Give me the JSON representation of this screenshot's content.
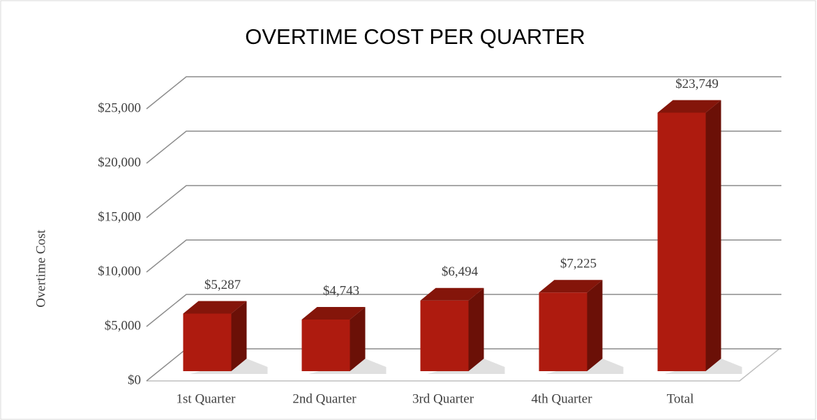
{
  "chart_data": {
    "type": "bar3d",
    "title": "OVERTIME COST PER QUARTER",
    "y_label": "Overtime Cost",
    "categories": [
      "1st Quarter",
      "2nd Quarter",
      "3rd Quarter",
      "4th Quarter",
      "Total"
    ],
    "values": [
      5287,
      4743,
      6494,
      7225,
      23749
    ],
    "value_labels": [
      "$5,287",
      "$4,743",
      "$6,494",
      "$7,225",
      "$23,749"
    ],
    "color": "#ae1b0f",
    "ylim": [
      0,
      25000
    ],
    "yticks": [
      {
        "value": 0,
        "label": "$0"
      },
      {
        "value": 5000,
        "label": "$5,000"
      },
      {
        "value": 10000,
        "label": "$10,000"
      },
      {
        "value": 15000,
        "label": "$15,000"
      },
      {
        "value": 20000,
        "label": "$20,000"
      },
      {
        "value": 25000,
        "label": "$25,000"
      }
    ],
    "grid": true
  }
}
